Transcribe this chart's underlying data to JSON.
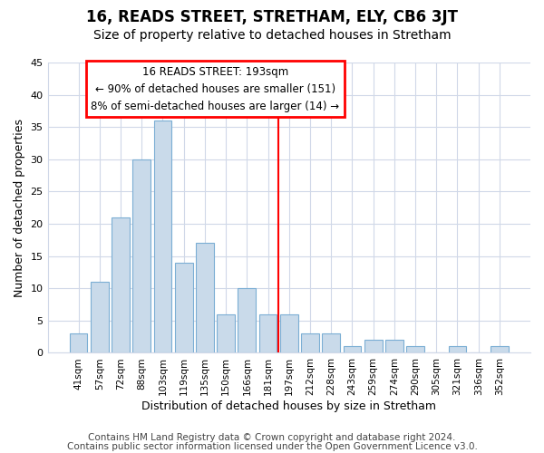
{
  "title": "16, READS STREET, STRETHAM, ELY, CB6 3JT",
  "subtitle": "Size of property relative to detached houses in Stretham",
  "xlabel": "Distribution of detached houses by size in Stretham",
  "ylabel": "Number of detached properties",
  "categories": [
    "41sqm",
    "57sqm",
    "72sqm",
    "88sqm",
    "103sqm",
    "119sqm",
    "135sqm",
    "150sqm",
    "166sqm",
    "181sqm",
    "197sqm",
    "212sqm",
    "228sqm",
    "243sqm",
    "259sqm",
    "274sqm",
    "290sqm",
    "305sqm",
    "321sqm",
    "336sqm",
    "352sqm"
  ],
  "values": [
    3,
    11,
    21,
    30,
    36,
    14,
    17,
    6,
    10,
    6,
    6,
    3,
    3,
    1,
    2,
    2,
    1,
    0,
    1,
    0,
    1
  ],
  "bar_color": "#c9daea",
  "bar_edge_color": "#7baed4",
  "red_line_index": 10,
  "ylim": [
    0,
    45
  ],
  "yticks": [
    0,
    5,
    10,
    15,
    20,
    25,
    30,
    35,
    40,
    45
  ],
  "annotation_title": "16 READS STREET: 193sqm",
  "annotation_line1": "← 90% of detached houses are smaller (151)",
  "annotation_line2": "8% of semi-detached houses are larger (14) →",
  "footer_line1": "Contains HM Land Registry data © Crown copyright and database right 2024.",
  "footer_line2": "Contains public sector information licensed under the Open Government Licence v3.0.",
  "background_color": "#ffffff",
  "plot_background": "#ffffff",
  "grid_color": "#d0d8e8",
  "title_fontsize": 12,
  "subtitle_fontsize": 10,
  "footer_fontsize": 7.5
}
